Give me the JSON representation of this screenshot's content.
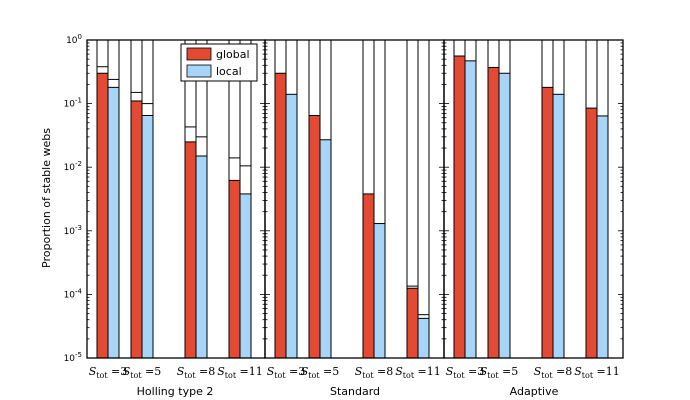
{
  "chart_data": {
    "type": "bar",
    "yscale": "log",
    "ylim": [
      1e-05,
      1
    ],
    "ylabel": "Proportion of stable webs",
    "y_tick_labels": [
      {
        "base": "10",
        "exp": "-5",
        "value": 1e-05
      },
      {
        "base": "10",
        "exp": "-4",
        "value": 0.0001
      },
      {
        "base": "10",
        "exp": "-3",
        "value": 0.001
      },
      {
        "base": "10",
        "exp": "-2",
        "value": 0.01
      },
      {
        "base": "10",
        "exp": "-1",
        "value": 0.1
      },
      {
        "base": "10",
        "exp": "0",
        "value": 1
      }
    ],
    "legend": {
      "position": "upper-left of first panel",
      "entries": [
        {
          "name": "global",
          "color": "#e34a33"
        },
        {
          "name": "local",
          "color": "#a6d5f7"
        }
      ]
    },
    "categories": [
      {
        "main": "S",
        "sub": "tot",
        "eq": " =3"
      },
      {
        "main": "S",
        "sub": "tot",
        "eq": " =5"
      },
      {
        "main": "S",
        "sub": "tot",
        "eq": " =8"
      },
      {
        "main": "S",
        "sub": "tot",
        "eq": " =11"
      }
    ],
    "panels": [
      {
        "title": "Holling type 2",
        "series": [
          {
            "name": "global",
            "values": [
              0.3,
              0.11,
              0.025,
              0.0062
            ],
            "upper": [
              0.38,
              0.15,
              0.043,
              0.014
            ]
          },
          {
            "name": "local",
            "values": [
              0.18,
              0.065,
              0.015,
              0.0038
            ],
            "upper": [
              0.24,
              0.1,
              0.03,
              0.0105
            ]
          }
        ]
      },
      {
        "title": "Standard",
        "series": [
          {
            "name": "global",
            "values": [
              0.3,
              0.065,
              0.0038,
              0.000125
            ],
            "upper": [
              null,
              null,
              null,
              0.000135
            ]
          },
          {
            "name": "local",
            "values": [
              0.14,
              0.027,
              0.0013,
              4.2e-05
            ],
            "upper": [
              null,
              null,
              null,
              4.8e-05
            ]
          }
        ]
      },
      {
        "title": "Adaptive",
        "series": [
          {
            "name": "global",
            "values": [
              0.56,
              0.37,
              0.18,
              0.085
            ],
            "upper": [
              null,
              null,
              null,
              null
            ]
          },
          {
            "name": "local",
            "values": [
              0.47,
              0.3,
              0.14,
              0.064
            ],
            "upper": [
              null,
              null,
              null,
              null
            ]
          }
        ]
      }
    ]
  }
}
